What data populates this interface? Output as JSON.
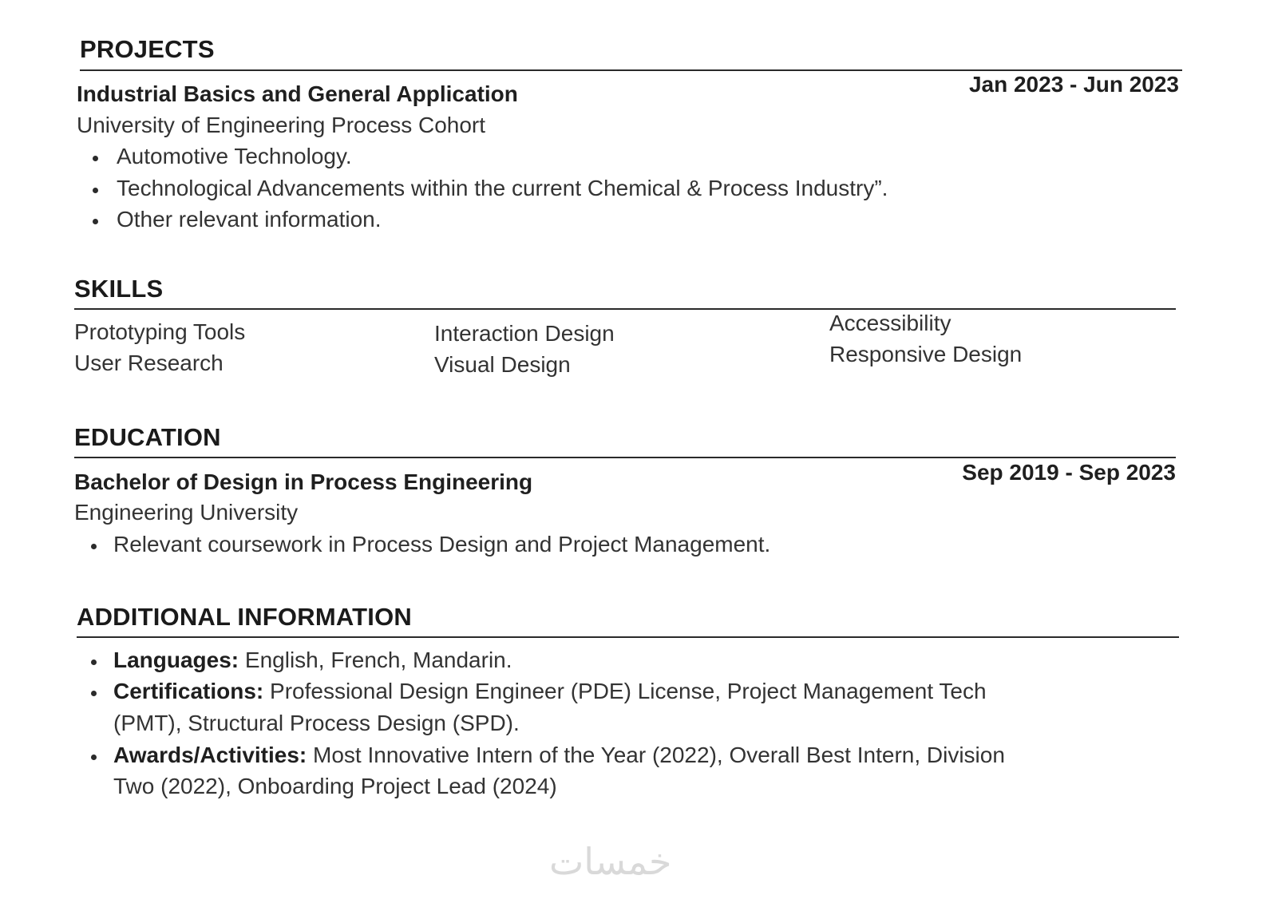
{
  "projects": {
    "heading": "PROJECTS",
    "title": "Industrial Basics and General Application",
    "org": "University of Engineering Process Cohort",
    "dates": "Jan 2023 - Jun 2023",
    "bullets": [
      "Automotive Technology.",
      "Technological Advancements within the current Chemical & Process Industry”.",
      "Other relevant information."
    ]
  },
  "skills": {
    "heading": "SKILLS",
    "col1": [
      "Prototyping Tools",
      "User Research"
    ],
    "col2": [
      "Interaction Design",
      "Visual Design"
    ],
    "col3": [
      "Accessibility",
      "Responsive Design"
    ]
  },
  "education": {
    "heading": "EDUCATION",
    "degree": "Bachelor of Design in Process Engineering",
    "school": "Engineering University",
    "dates": "Sep 2019 - Sep 2023",
    "bullets": [
      "Relevant coursework in Process Design and Project Management."
    ]
  },
  "additional": {
    "heading": "ADDITIONAL INFORMATION",
    "items": [
      {
        "label": "Languages:",
        "lines": [
          "English, French, Mandarin."
        ]
      },
      {
        "label": "Certifications:",
        "lines": [
          "Professional Design Engineer (PDE) License, Project Management Tech",
          "(PMT), Structural Process Design (SPD)."
        ]
      },
      {
        "label": "Awards/Activities:",
        "lines": [
          "Most Innovative Intern of the Year (2022), Overall Best Intern, Division",
          "Two (2022), Onboarding Project Lead (2024)"
        ]
      }
    ]
  },
  "watermark": "خمسات"
}
